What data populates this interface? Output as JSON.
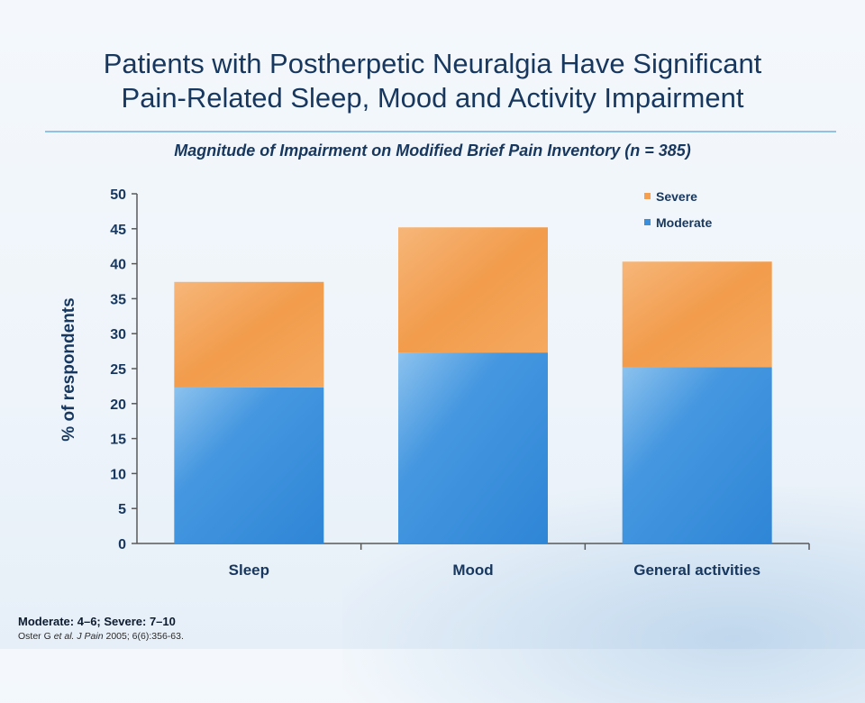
{
  "slide": {
    "title_line1": "Patients with Postherpetic Neuralgia Have Significant",
    "title_line2": "Pain-Related Sleep, Mood and Activity Impairment",
    "footnote": "Moderate: 4–6; Severe: 7–10",
    "citation": {
      "author": "Oster G ",
      "etal": "et al.",
      "journal": " J Pain",
      "rest": " 2005; 6(6):356-63."
    }
  },
  "chart_data": {
    "type": "bar",
    "stacked": true,
    "title": "Magnitude of Impairment on Modified Brief Pain Inventory (n = 385)",
    "categories": [
      "Sleep",
      "Mood",
      "General activities"
    ],
    "series": [
      {
        "name": "Moderate",
        "values": [
          22.3,
          27.3,
          25.2
        ],
        "color": "#3a8fdc"
      },
      {
        "name": "Severe",
        "values": [
          15.1,
          17.9,
          15.1
        ],
        "color": "#f5a04f"
      }
    ],
    "ylabel": "% of respondents",
    "xlabel": "",
    "ylim": [
      0,
      50
    ],
    "yticks": [
      0,
      5,
      10,
      15,
      20,
      25,
      30,
      35,
      40,
      45,
      50
    ],
    "grid": false,
    "legend_position": "top-right"
  }
}
